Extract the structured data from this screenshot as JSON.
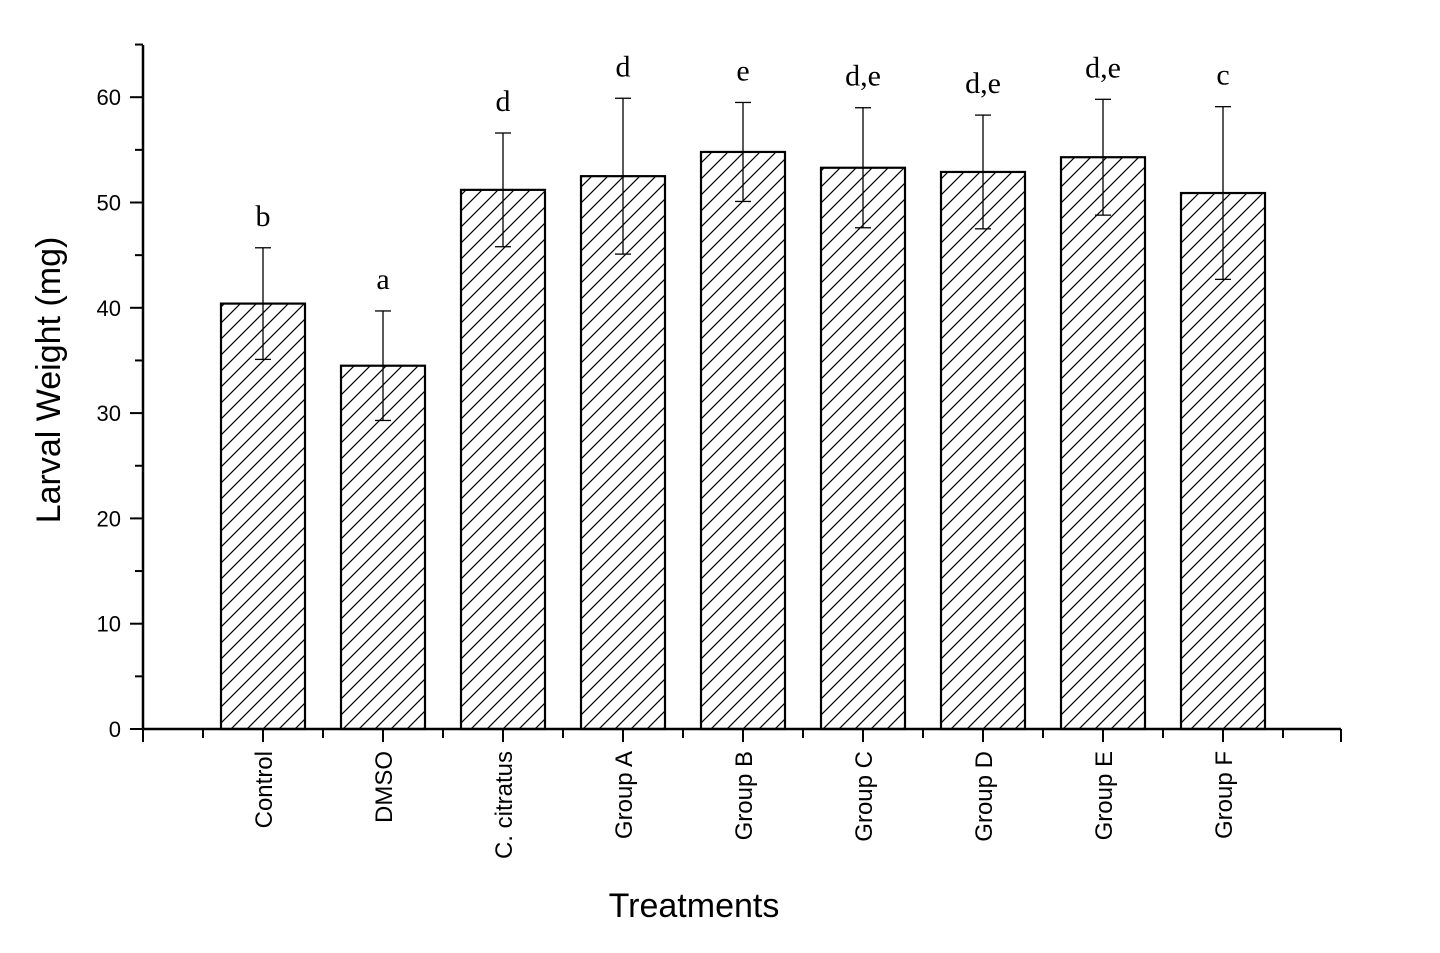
{
  "chart_data": {
    "type": "bar",
    "title": "",
    "xlabel": "Treatments",
    "ylabel": "Larval Weight (mg)",
    "ylim": [
      0,
      65
    ],
    "yticks": [
      0,
      10,
      20,
      30,
      40,
      50,
      60
    ],
    "grid": false,
    "legend": null,
    "bar_fill": "diagonal hatch",
    "categories": [
      "Control",
      "DMSO",
      "C. citratus",
      "Group A",
      "Group B",
      "Group C",
      "Group D",
      "Group E",
      "Group F"
    ],
    "values": [
      40.4,
      34.5,
      51.2,
      52.5,
      54.8,
      53.3,
      52.9,
      54.3,
      50.9
    ],
    "error": [
      5.3,
      5.2,
      5.4,
      7.4,
      4.7,
      5.7,
      5.4,
      5.5,
      8.2
    ],
    "significance_labels": [
      "b",
      "a",
      "d",
      "d",
      "e",
      "d,e",
      "d,e",
      "d,e",
      "c"
    ]
  },
  "colors": {
    "bar_stroke": "#000000",
    "background": "#ffffff"
  }
}
